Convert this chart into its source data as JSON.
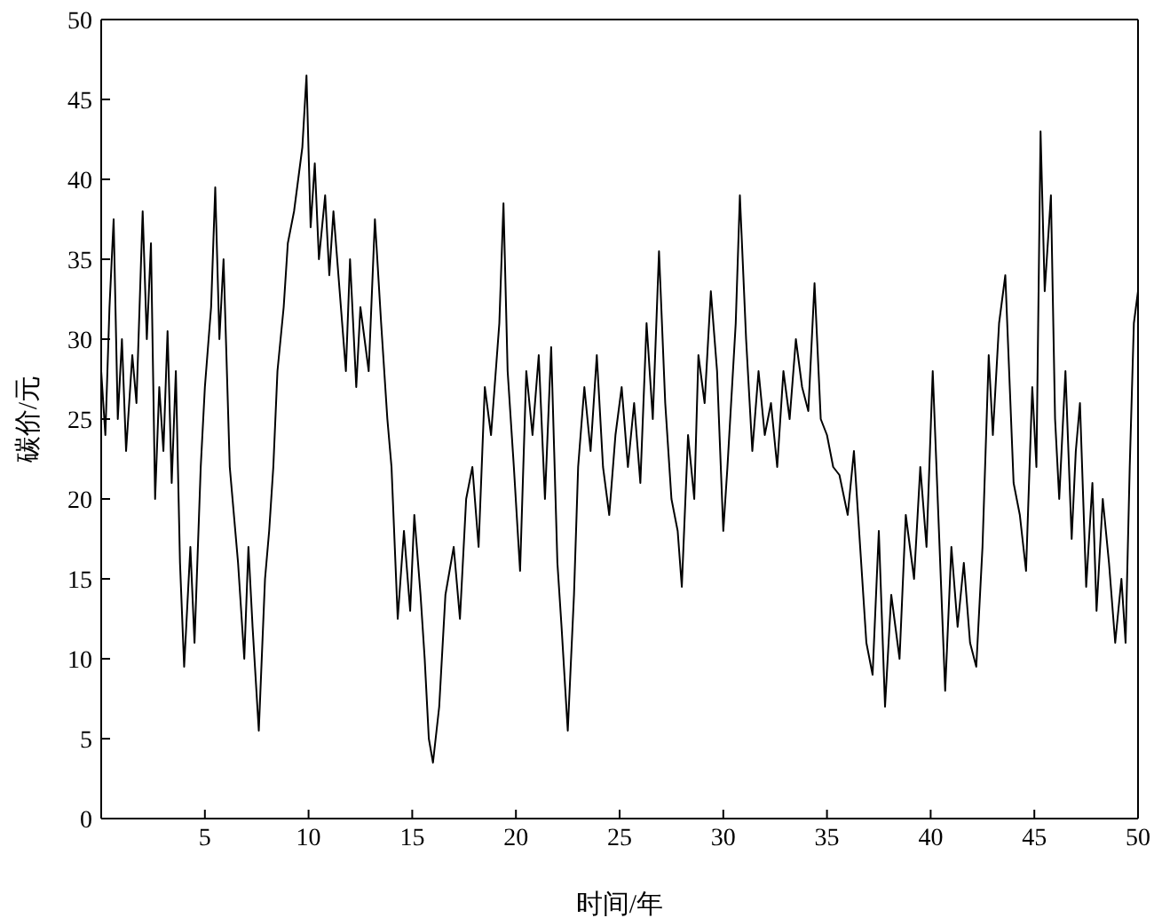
{
  "chart_data": {
    "type": "line",
    "xlabel": "时间/年",
    "ylabel": "碳价/元",
    "xlim": [
      0,
      50
    ],
    "xticks": [
      5,
      10,
      15,
      20,
      25,
      30,
      35,
      40,
      45,
      50
    ],
    "ylim": [
      0,
      50
    ],
    "yticks": [
      0,
      5,
      10,
      15,
      20,
      25,
      30,
      35,
      40,
      45,
      50
    ],
    "marker": "none",
    "line_style": "solid",
    "series": [
      {
        "color": "#000000",
        "x": [
          0,
          0.2,
          0.4,
          0.6,
          0.8,
          1.0,
          1.2,
          1.5,
          1.7,
          2.0,
          2.2,
          2.4,
          2.6,
          2.8,
          3.0,
          3.2,
          3.4,
          3.6,
          3.8,
          4.0,
          4.3,
          4.5,
          4.8,
          5.0,
          5.3,
          5.5,
          5.7,
          5.9,
          6.2,
          6.4,
          6.6,
          6.9,
          7.1,
          7.3,
          7.6,
          7.9,
          8.1,
          8.3,
          8.5,
          8.8,
          9.0,
          9.3,
          9.5,
          9.7,
          9.9,
          10.1,
          10.3,
          10.5,
          10.8,
          11.0,
          11.2,
          11.5,
          11.8,
          12.0,
          12.3,
          12.5,
          12.7,
          12.9,
          13.2,
          13.5,
          13.8,
          14.0,
          14.3,
          14.6,
          14.9,
          15.1,
          15.4,
          15.6,
          15.8,
          16.0,
          16.3,
          16.6,
          17.0,
          17.3,
          17.6,
          17.9,
          18.2,
          18.5,
          18.8,
          19.2,
          19.4,
          19.6,
          19.9,
          20.2,
          20.5,
          20.8,
          21.1,
          21.4,
          21.7,
          22.0,
          22.2,
          22.5,
          22.8,
          23.0,
          23.3,
          23.6,
          23.9,
          24.2,
          24.5,
          24.8,
          25.1,
          25.4,
          25.7,
          26.0,
          26.3,
          26.6,
          26.9,
          27.2,
          27.5,
          27.8,
          28.0,
          28.3,
          28.6,
          28.8,
          29.1,
          29.4,
          29.7,
          30.0,
          30.2,
          30.6,
          30.8,
          31.1,
          31.4,
          31.7,
          32.0,
          32.3,
          32.6,
          32.9,
          33.2,
          33.5,
          33.8,
          34.1,
          34.4,
          34.7,
          35.0,
          35.3,
          35.6,
          36.0,
          36.3,
          36.6,
          36.9,
          37.2,
          37.5,
          37.8,
          38.1,
          38.5,
          38.8,
          39.2,
          39.5,
          39.8,
          40.1,
          40.4,
          40.7,
          41.0,
          41.3,
          41.6,
          41.9,
          42.2,
          42.5,
          42.8,
          43.0,
          43.3,
          43.6,
          44.0,
          44.3,
          44.6,
          44.9,
          45.1,
          45.3,
          45.5,
          45.8,
          46.0,
          46.2,
          46.5,
          46.8,
          47.0,
          47.2,
          47.5,
          47.8,
          48.0,
          48.3,
          48.6,
          48.9,
          49.2,
          49.4,
          49.6,
          49.8,
          50.0
        ],
        "values": [
          28,
          24,
          32,
          37.5,
          25,
          30,
          23,
          29,
          26,
          38,
          30,
          36,
          20,
          27,
          23,
          30.5,
          21,
          28,
          16,
          9.5,
          17,
          11,
          22,
          27,
          32,
          39.5,
          30,
          35,
          22,
          19,
          16,
          10,
          17,
          12,
          5.5,
          15,
          18,
          22,
          28,
          32,
          36,
          38,
          40,
          42,
          46.5,
          37,
          41,
          35,
          39,
          34,
          38,
          33,
          28,
          35,
          27,
          32,
          30,
          28,
          37.5,
          31,
          25,
          22,
          12.5,
          18,
          13,
          19,
          14,
          10,
          5,
          3.5,
          7,
          14,
          17,
          12.5,
          20,
          22,
          17,
          27,
          24,
          31,
          38.5,
          28,
          22,
          15.5,
          28,
          24,
          29,
          20,
          29.5,
          16,
          12,
          5.5,
          14,
          22,
          27,
          23,
          29,
          22,
          19,
          24,
          27,
          22,
          26,
          21,
          31,
          25,
          35.5,
          26,
          20,
          18,
          14.5,
          24,
          20,
          29,
          26,
          33,
          28,
          18,
          22,
          31,
          39,
          30,
          23,
          28,
          24,
          26,
          22,
          28,
          25,
          30,
          27,
          25.5,
          33.5,
          25,
          24,
          22,
          21.5,
          19,
          23,
          17,
          11,
          9,
          18,
          7,
          14,
          10,
          19,
          15,
          22,
          17,
          28,
          18,
          8,
          17,
          12,
          16,
          11,
          9.5,
          17,
          29,
          24,
          31,
          34,
          21,
          19,
          15.5,
          27,
          22,
          43,
          33,
          39,
          25,
          20,
          28,
          17.5,
          23,
          26,
          14.5,
          21,
          13,
          20,
          16,
          11,
          15,
          11,
          22,
          31,
          33
        ]
      }
    ]
  }
}
